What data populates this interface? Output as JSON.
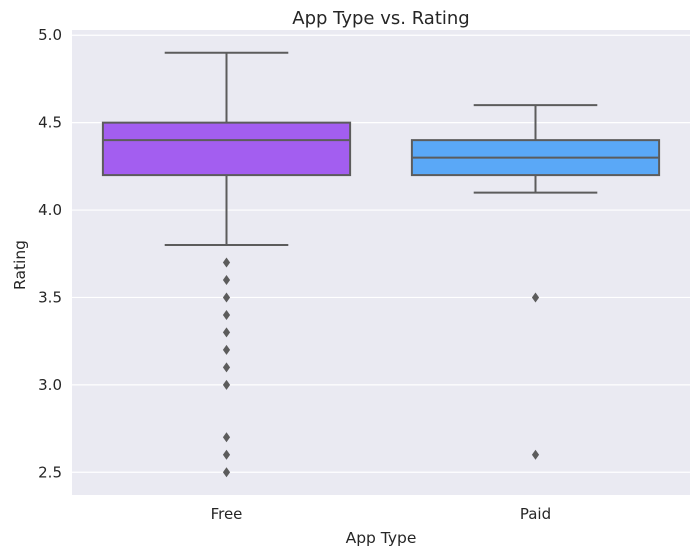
{
  "chart_data": {
    "type": "box",
    "title": "App Type vs. Rating",
    "xlabel": "App Type",
    "ylabel": "Rating",
    "categories": [
      "Free",
      "Paid"
    ],
    "ylim": [
      2.37,
      5.03
    ],
    "yticks": [
      "2.5",
      "3.0",
      "3.5",
      "4.0",
      "4.5",
      "5.0"
    ],
    "grid": true,
    "boxes": [
      {
        "category": "Free",
        "color": "#a35ef0",
        "q1": 4.2,
        "median": 4.4,
        "q3": 4.5,
        "whisker_low": 3.8,
        "whisker_high": 4.9,
        "outliers": [
          3.7,
          3.6,
          3.5,
          3.4,
          3.3,
          3.2,
          3.1,
          3.0,
          2.7,
          2.6,
          2.5
        ]
      },
      {
        "category": "Paid",
        "color": "#5aa8f7",
        "q1": 4.2,
        "median": 4.3,
        "q3": 4.4,
        "whisker_low": 4.1,
        "whisker_high": 4.6,
        "outliers": [
          3.5,
          2.6
        ]
      }
    ]
  }
}
